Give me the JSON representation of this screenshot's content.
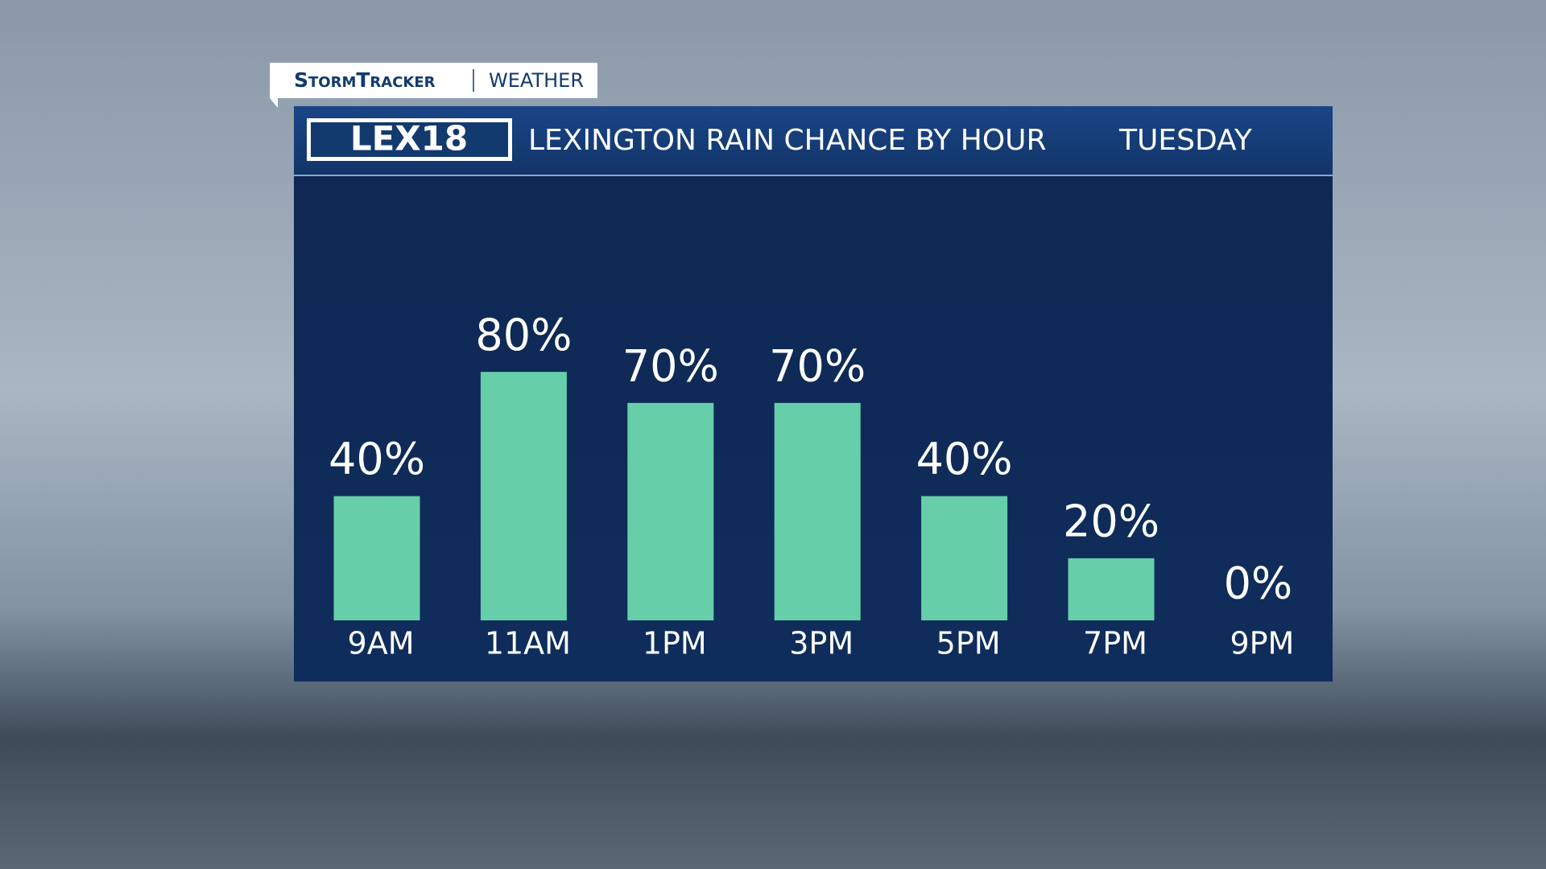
{
  "header": {
    "brand": "StormTracker",
    "section": "WEATHER",
    "logo": "LEX18"
  },
  "chart_data": {
    "type": "bar",
    "title": "LEXINGTON RAIN CHANCE BY HOUR",
    "subtitle": "TUESDAY",
    "categories": [
      "9AM",
      "11AM",
      "1PM",
      "3PM",
      "5PM",
      "7PM",
      "9PM"
    ],
    "values": [
      40,
      80,
      70,
      70,
      40,
      20,
      0
    ],
    "value_labels": [
      "40%",
      "80%",
      "70%",
      "70%",
      "40%",
      "20%",
      "0%"
    ],
    "color": "#66cfaa"
  }
}
